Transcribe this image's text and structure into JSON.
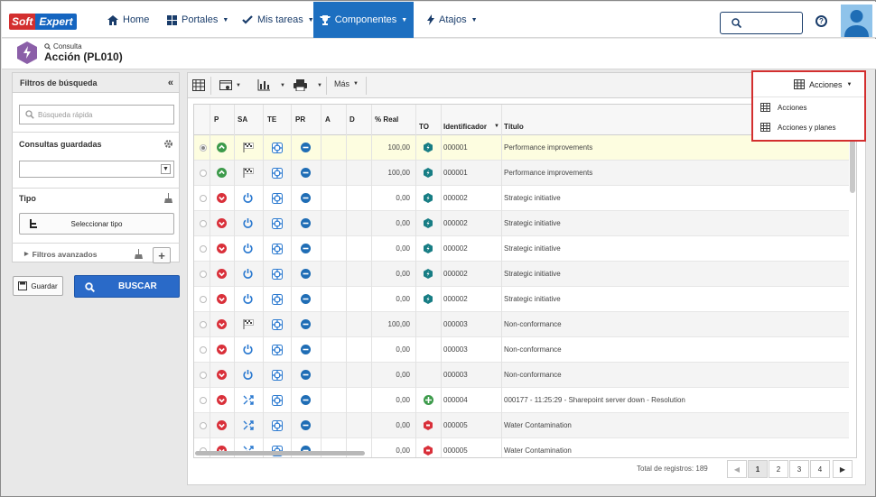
{
  "brand": {
    "logo_left": "Soft",
    "logo_right": "Expert",
    "accent": "#1d6fc0",
    "red": "#d32f2f"
  },
  "nav": {
    "items": [
      {
        "label": "Home",
        "icon": "home-icon"
      },
      {
        "label": "Portales",
        "icon": "grid-icon"
      },
      {
        "label": "Mis tareas",
        "icon": "check-icon"
      },
      {
        "label": "Componentes",
        "icon": "trophy-icon"
      },
      {
        "label": "Atajos",
        "icon": "bolt-icon"
      }
    ]
  },
  "header": {
    "crumb": "Consulta",
    "title": "Acción (PL010)"
  },
  "filters": {
    "title": "Filtros de búsqueda",
    "quick_placeholder": "Búsqueda rápida",
    "saved_label": "Consultas guardadas",
    "type_label": "Tipo",
    "select_type": "Seleccionar tipo",
    "advanced": "Filtros avanzados",
    "save": "Guardar",
    "search": "BUSCAR"
  },
  "toolbar": {
    "more": "Más",
    "views_label": "Acciones"
  },
  "dropdown": {
    "items": [
      "Acciones",
      "Acciones y planes"
    ]
  },
  "columns": {
    "p": "P",
    "sa": "SA",
    "te": "TE",
    "pr": "PR",
    "a": "A",
    "d": "D",
    "real": "% Real",
    "to": "TO",
    "id": "Identificador",
    "title": "Título"
  },
  "rows": [
    {
      "p": "up",
      "sa": "flag",
      "real": "100,00",
      "to": "hex",
      "id": "000001",
      "title": "Performance improvements",
      "sel": true
    },
    {
      "p": "up",
      "sa": "flag",
      "real": "100,00",
      "to": "hex",
      "id": "000001",
      "title": "Performance improvements"
    },
    {
      "p": "down",
      "sa": "power",
      "real": "0,00",
      "to": "hex",
      "id": "000002",
      "title": "Strategic initiative"
    },
    {
      "p": "down",
      "sa": "power",
      "real": "0,00",
      "to": "hex",
      "id": "000002",
      "title": "Strategic initiative"
    },
    {
      "p": "down",
      "sa": "power",
      "real": "0,00",
      "to": "hex",
      "id": "000002",
      "title": "Strategic initiative"
    },
    {
      "p": "down",
      "sa": "power",
      "real": "0,00",
      "to": "hex",
      "id": "000002",
      "title": "Strategic initiative"
    },
    {
      "p": "down",
      "sa": "power",
      "real": "0,00",
      "to": "hex",
      "id": "000002",
      "title": "Strategic initiative"
    },
    {
      "p": "down",
      "sa": "flag",
      "real": "100,00",
      "to": "",
      "id": "000003",
      "title": "Non-conformance"
    },
    {
      "p": "down",
      "sa": "power",
      "real": "0,00",
      "to": "",
      "id": "000003",
      "title": "Non-conformance"
    },
    {
      "p": "down",
      "sa": "power",
      "real": "0,00",
      "to": "",
      "id": "000003",
      "title": "Non-conformance"
    },
    {
      "p": "down",
      "sa": "shuffle",
      "real": "0,00",
      "to": "plus",
      "id": "000004",
      "title": "000177 - 11:25:29 - Sharepoint server down - Resolution"
    },
    {
      "p": "down",
      "sa": "shuffle",
      "real": "0,00",
      "to": "redhex",
      "id": "000005",
      "title": "Water Contamination"
    },
    {
      "p": "down",
      "sa": "shuffle",
      "real": "0,00",
      "to": "redhex",
      "id": "000005",
      "title": "Water Contamination"
    }
  ],
  "footer": {
    "total": "Total de registros: 189",
    "pages": [
      "1",
      "2",
      "3",
      "4"
    ]
  }
}
